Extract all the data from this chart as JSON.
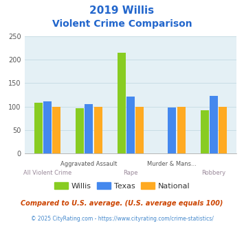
{
  "title_line1": "2019 Willis",
  "title_line2": "Violent Crime Comparison",
  "willis": [
    108,
    97,
    215,
    0,
    93
  ],
  "texas": [
    111,
    106,
    121,
    98,
    123
  ],
  "national": [
    100,
    100,
    100,
    100,
    100
  ],
  "willis_color": "#88cc22",
  "texas_color": "#4488ee",
  "national_color": "#ffaa22",
  "bg_color": "#e4f0f5",
  "title_color": "#2266cc",
  "ylim": [
    0,
    250
  ],
  "yticks": [
    0,
    50,
    100,
    150,
    200,
    250
  ],
  "row1_indices": [
    1,
    3
  ],
  "row1_labels": [
    "Aggravated Assault",
    "Murder & Mans..."
  ],
  "row2_indices": [
    0,
    2,
    4
  ],
  "row2_labels": [
    "All Violent Crime",
    "Rape",
    "Robbery"
  ],
  "legend_labels": [
    "Willis",
    "Texas",
    "National"
  ],
  "footnote1": "Compared to U.S. average. (U.S. average equals 100)",
  "footnote2": "© 2025 CityRating.com - https://www.cityrating.com/crime-statistics/",
  "footnote1_color": "#cc4400",
  "footnote2_color": "#4488cc",
  "grid_color": "#c8dde5",
  "bar_width": 0.2,
  "bar_gap": 0.02
}
